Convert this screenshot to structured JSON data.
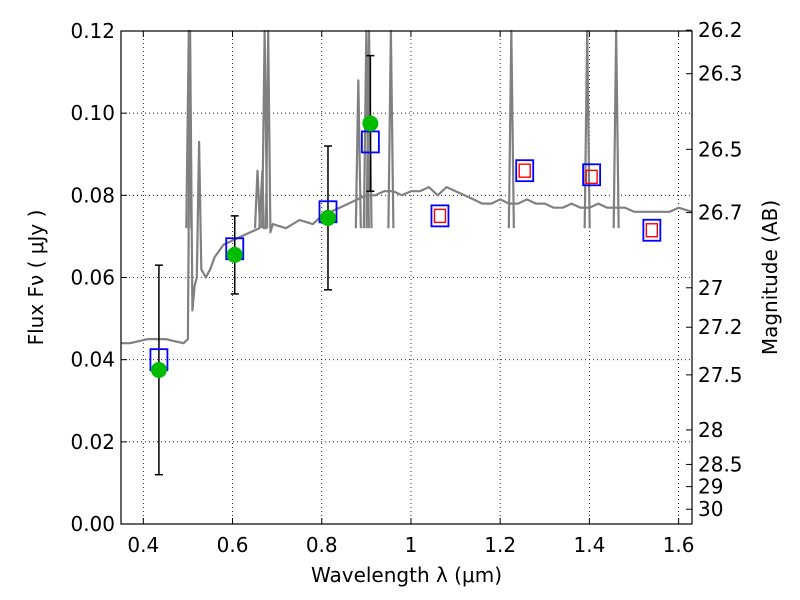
{
  "chart_data": {
    "type": "scatter",
    "xlabel": "Wavelength  λ (μm)",
    "ylabel_left": "Flux  Fν  ( μJy )",
    "ylabel_right": "Magnitude (AB)",
    "xlim": [
      0.35,
      1.63
    ],
    "ylim": [
      0.0,
      0.12
    ],
    "grid": true,
    "x_ticks": [
      0.4,
      0.6,
      0.8,
      1.0,
      1.2,
      1.4,
      1.6
    ],
    "x_tick_labels": [
      "0.4",
      "0.6",
      "0.8",
      "1",
      "1.2",
      "1.4",
      "1.6"
    ],
    "y_ticks": [
      0.0,
      0.02,
      0.04,
      0.06,
      0.08,
      0.1,
      0.12
    ],
    "y_tick_labels": [
      "0.00",
      "0.02",
      "0.04",
      "0.06",
      "0.08",
      "0.10",
      "0.12"
    ],
    "right_ticks": [
      {
        "label": "26.2",
        "flux": 0.1202
      },
      {
        "label": "26.3",
        "flux": 0.1096
      },
      {
        "label": "26.5",
        "flux": 0.0912
      },
      {
        "label": "26.7",
        "flux": 0.0758
      },
      {
        "label": "27",
        "flux": 0.0575
      },
      {
        "label": "27.2",
        "flux": 0.0479
      },
      {
        "label": "27.5",
        "flux": 0.0363
      },
      {
        "label": "28",
        "flux": 0.0229
      },
      {
        "label": "28.5",
        "flux": 0.0145
      },
      {
        "label": "29",
        "flux": 0.0091
      },
      {
        "label": "30",
        "flux": 0.0036
      }
    ],
    "series": [
      {
        "kind": "model_spectrum_line",
        "color": "#808080",
        "x": [
          0.35,
          0.37,
          0.39,
          0.41,
          0.43,
          0.45,
          0.47,
          0.49,
          0.5,
          0.505,
          0.51,
          0.515,
          0.52,
          0.525,
          0.53,
          0.54,
          0.55,
          0.56,
          0.58,
          0.6,
          0.62,
          0.64,
          0.66,
          0.667,
          0.67,
          0.675,
          0.68,
          0.685,
          0.69,
          0.72,
          0.75,
          0.78,
          0.8,
          0.82,
          0.84,
          0.86,
          0.88,
          0.9,
          0.92,
          0.94,
          0.96,
          0.98,
          1.0,
          1.02,
          1.04,
          1.06,
          1.08,
          1.1,
          1.12,
          1.14,
          1.16,
          1.18,
          1.2,
          1.22,
          1.24,
          1.26,
          1.28,
          1.3,
          1.32,
          1.34,
          1.36,
          1.38,
          1.4,
          1.42,
          1.44,
          1.46,
          1.48,
          1.5,
          1.52,
          1.54,
          1.56,
          1.58,
          1.6,
          1.63
        ],
        "y": [
          0.044,
          0.044,
          0.0445,
          0.045,
          0.045,
          0.045,
          0.0445,
          0.044,
          0.045,
          0.12,
          0.052,
          0.058,
          0.06,
          0.093,
          0.062,
          0.06,
          0.062,
          0.065,
          0.068,
          0.069,
          0.07,
          0.071,
          0.072,
          0.086,
          0.072,
          0.072,
          0.12,
          0.071,
          0.073,
          0.072,
          0.074,
          0.073,
          0.075,
          0.076,
          0.077,
          0.078,
          0.079,
          0.08,
          0.08,
          0.081,
          0.081,
          0.08,
          0.081,
          0.081,
          0.082,
          0.08,
          0.082,
          0.081,
          0.08,
          0.079,
          0.078,
          0.078,
          0.079,
          0.078,
          0.078,
          0.079,
          0.078,
          0.078,
          0.077,
          0.077,
          0.078,
          0.077,
          0.077,
          0.078,
          0.077,
          0.077,
          0.077,
          0.076,
          0.076,
          0.076,
          0.076,
          0.076,
          0.077,
          0.076
        ]
      },
      {
        "kind": "emission_lines",
        "color": "#808080",
        "peaks": [
          {
            "x": 0.502,
            "y": 0.12
          },
          {
            "x": 0.656,
            "y": 0.086
          },
          {
            "x": 0.672,
            "y": 0.12
          },
          {
            "x": 0.882,
            "y": 0.108
          },
          {
            "x": 0.9,
            "y": 0.12
          },
          {
            "x": 0.906,
            "y": 0.12
          },
          {
            "x": 0.955,
            "y": 0.12
          },
          {
            "x": 1.225,
            "y": 0.12
          },
          {
            "x": 1.395,
            "y": 0.12
          },
          {
            "x": 1.46,
            "y": 0.12
          }
        ]
      },
      {
        "kind": "observed_points",
        "color": "#00bb00",
        "points": [
          {
            "x": 0.435,
            "y": 0.0375,
            "yerr": 0.0255
          },
          {
            "x": 0.605,
            "y": 0.0655,
            "yerr": 0.0095
          },
          {
            "x": 0.814,
            "y": 0.0745,
            "yerr": 0.0175
          },
          {
            "x": 0.909,
            "y": 0.0975,
            "yerr": 0.0165
          }
        ]
      },
      {
        "kind": "model_band_fluxes",
        "color": "#0000ff",
        "points": [
          {
            "x": 0.435,
            "y": 0.04
          },
          {
            "x": 0.605,
            "y": 0.067
          },
          {
            "x": 0.814,
            "y": 0.076
          },
          {
            "x": 0.909,
            "y": 0.093
          },
          {
            "x": 1.065,
            "y": 0.075
          },
          {
            "x": 1.255,
            "y": 0.086
          },
          {
            "x": 1.405,
            "y": 0.085
          },
          {
            "x": 1.54,
            "y": 0.0715
          }
        ]
      },
      {
        "kind": "predicted_band_fluxes",
        "color": "#ff0000",
        "points": [
          {
            "x": 1.065,
            "y": 0.075
          },
          {
            "x": 1.255,
            "y": 0.086
          },
          {
            "x": 1.405,
            "y": 0.0845
          },
          {
            "x": 1.54,
            "y": 0.0715
          }
        ]
      }
    ]
  }
}
